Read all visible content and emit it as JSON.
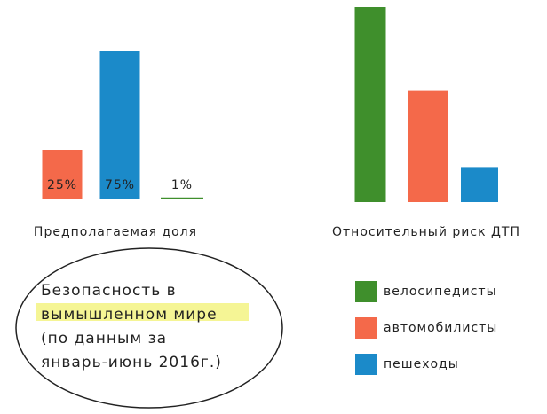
{
  "chart_data": [
    {
      "type": "bar",
      "title": "Предполагаемая доля",
      "values": [
        25,
        75,
        1
      ],
      "value_labels": [
        "25%",
        "75%",
        "1%"
      ],
      "colors": [
        "#f4694a",
        "#1b8ac9",
        "#3f8f2c"
      ],
      "ylim": [
        0,
        100
      ]
    },
    {
      "type": "bar",
      "title": "Относительный риск ДТП",
      "values": [
        100,
        57,
        18
      ],
      "colors": [
        "#3f8f2c",
        "#f4694a",
        "#1b8ac9"
      ],
      "ylim": [
        0,
        100
      ]
    }
  ],
  "legend": [
    {
      "label": "велосипедисты",
      "color": "#3f8f2c"
    },
    {
      "label": "автомобилисты",
      "color": "#f4694a"
    },
    {
      "label": "пешеходы",
      "color": "#1b8ac9"
    }
  ],
  "annotation": {
    "lines": [
      "Безопасность в",
      "вымышленном мире",
      "(по данным за",
      "январь-июнь 2016г.)"
    ]
  }
}
